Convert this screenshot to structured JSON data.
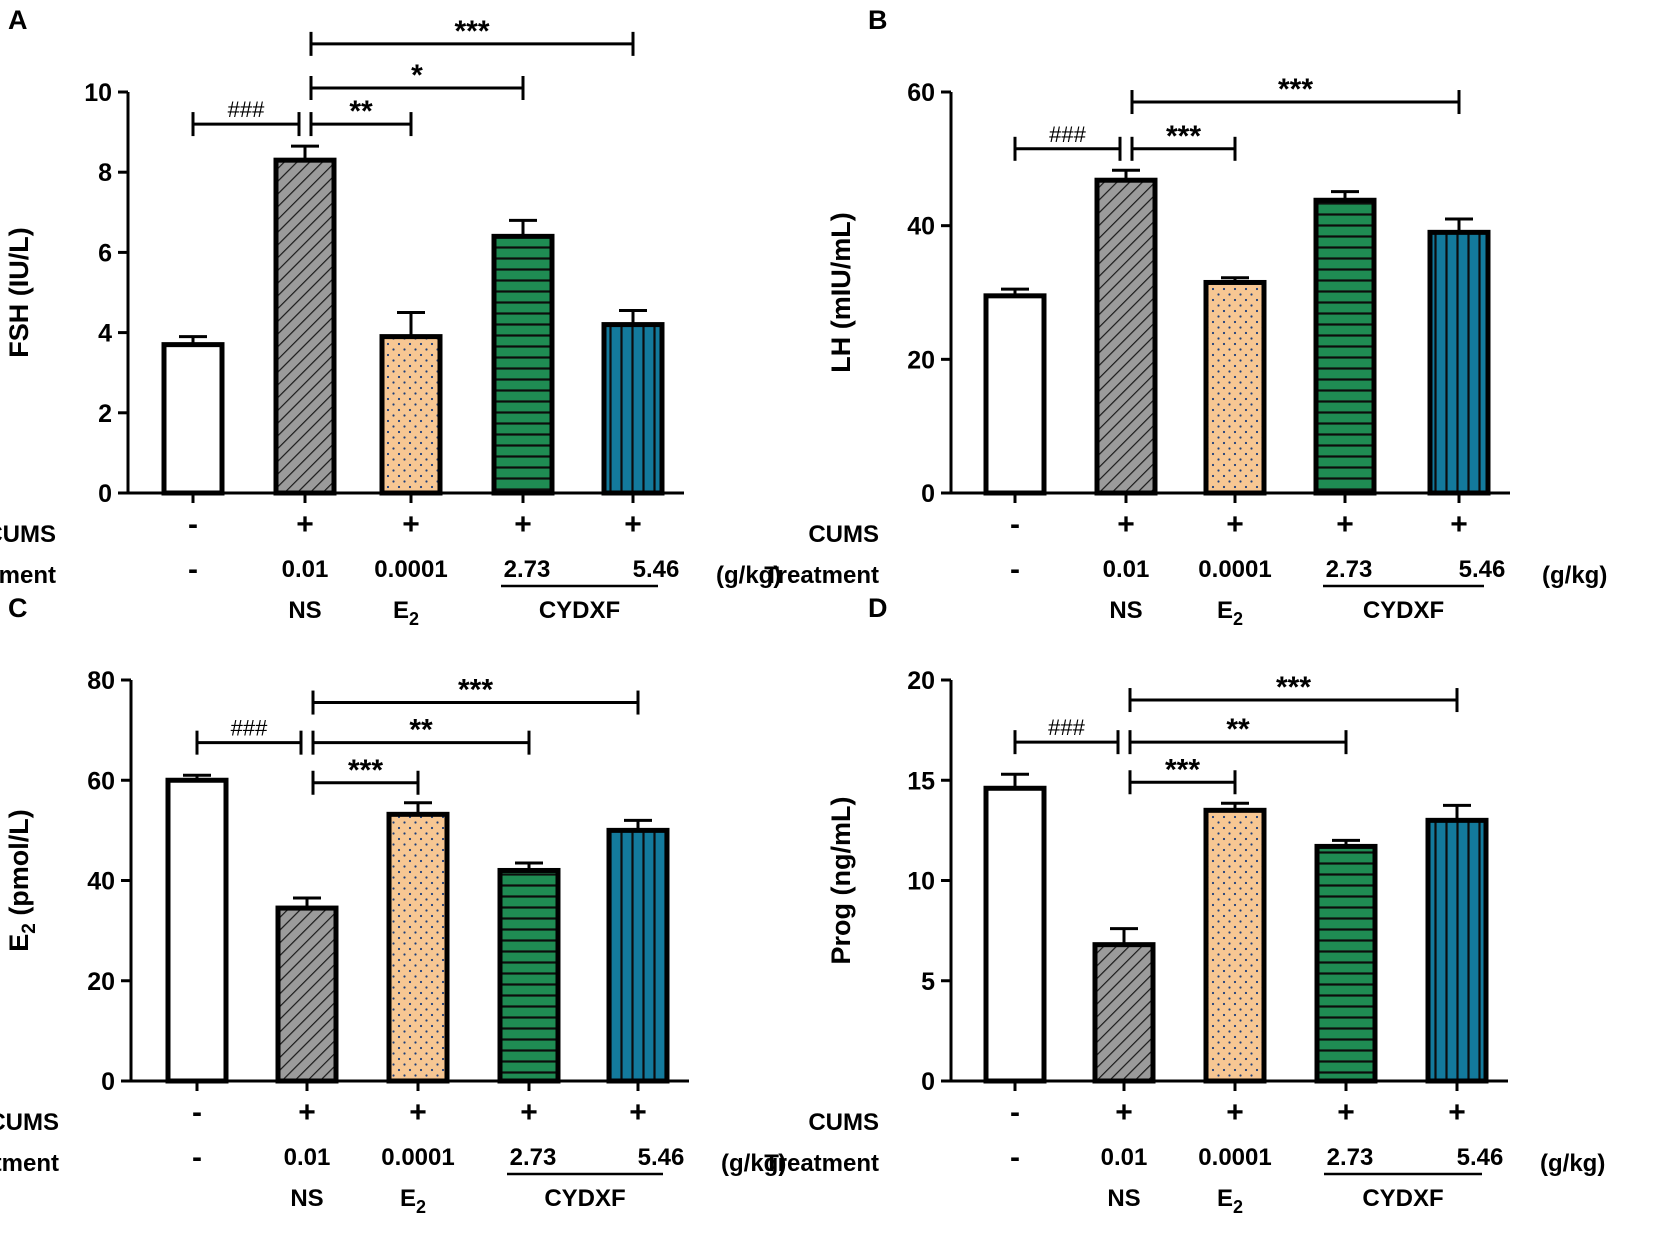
{
  "colors": {
    "control": "#ffffff",
    "ns": "#9b9b9b",
    "e2": "#f7c793",
    "cydxf_low": "#1f8c53",
    "cydxf_high": "#137a9c",
    "outline": "#000000"
  },
  "conditions": {
    "cums_label": "CUMS",
    "treatment_label": "Treatment",
    "cums": [
      "-",
      "+",
      "+",
      "+",
      "+"
    ],
    "doses": [
      "-",
      "0.01",
      "0.0001",
      "2.73",
      "5.46"
    ],
    "unit": "(g/kg)",
    "ns_label": "NS",
    "e2_label": "E",
    "e2_sub": "2",
    "cydxf_label": "CYDXF"
  },
  "chart_data": [
    {
      "panel": "A",
      "type": "bar",
      "ylabel": "FSH (IU/L)",
      "ylim": [
        0,
        10
      ],
      "yticks": [
        0,
        2,
        4,
        6,
        8,
        10
      ],
      "values": [
        3.7,
        8.3,
        3.9,
        6.4,
        4.2
      ],
      "errors": [
        0.2,
        0.35,
        0.6,
        0.4,
        0.35
      ],
      "annotations": [
        {
          "from": 0,
          "to": 1,
          "label": "###",
          "level": 9.2
        },
        {
          "from": 1,
          "to": 2,
          "label": "**",
          "level": 9.2
        },
        {
          "from": 1,
          "to": 3,
          "label": "*",
          "level": 10.1
        },
        {
          "from": 1,
          "to": 4,
          "label": "***",
          "level": 11.2
        }
      ]
    },
    {
      "panel": "B",
      "type": "bar",
      "ylabel": "LH (mIU/mL)",
      "ylim": [
        0,
        60
      ],
      "yticks": [
        0,
        20,
        40,
        60
      ],
      "values": [
        29.5,
        46.8,
        31.5,
        43.8,
        39
      ],
      "errors": [
        1,
        1.5,
        0.7,
        1.3,
        2
      ],
      "annotations": [
        {
          "from": 0,
          "to": 1,
          "label": "###",
          "level": 51.5
        },
        {
          "from": 1,
          "to": 2,
          "label": "***",
          "level": 51.5
        },
        {
          "from": 1,
          "to": 4,
          "label": "***",
          "level": 58.5
        }
      ]
    },
    {
      "panel": "C",
      "type": "bar",
      "ylabel": "E2 (pmol/L)",
      "ylabel_main": "E",
      "ylabel_sub": "2",
      "ylabel_rest": " (pmol/L)",
      "ylim": [
        0,
        80
      ],
      "yticks": [
        0,
        20,
        40,
        60,
        80
      ],
      "values": [
        60,
        34.5,
        53.2,
        42,
        50
      ],
      "errors": [
        1,
        2,
        2.3,
        1.5,
        2
      ],
      "annotations": [
        {
          "from": 0,
          "to": 1,
          "label": "###",
          "level": 67.5
        },
        {
          "from": 1,
          "to": 2,
          "label": "***",
          "level": 59.5
        },
        {
          "from": 1,
          "to": 3,
          "label": "**",
          "level": 67.5
        },
        {
          "from": 1,
          "to": 4,
          "label": "***",
          "level": 75.5
        }
      ]
    },
    {
      "panel": "D",
      "type": "bar",
      "ylabel": "Prog (ng/mL)",
      "ylim": [
        0,
        20
      ],
      "yticks": [
        0,
        5,
        10,
        15,
        20
      ],
      "values": [
        14.6,
        6.8,
        13.5,
        11.7,
        13
      ],
      "errors": [
        0.7,
        0.8,
        0.35,
        0.3,
        0.75
      ],
      "annotations": [
        {
          "from": 0,
          "to": 1,
          "label": "###",
          "level": 16.9
        },
        {
          "from": 1,
          "to": 2,
          "label": "***",
          "level": 14.9
        },
        {
          "from": 1,
          "to": 3,
          "label": "**",
          "level": 16.9
        },
        {
          "from": 1,
          "to": 4,
          "label": "***",
          "level": 19.0
        }
      ]
    }
  ]
}
